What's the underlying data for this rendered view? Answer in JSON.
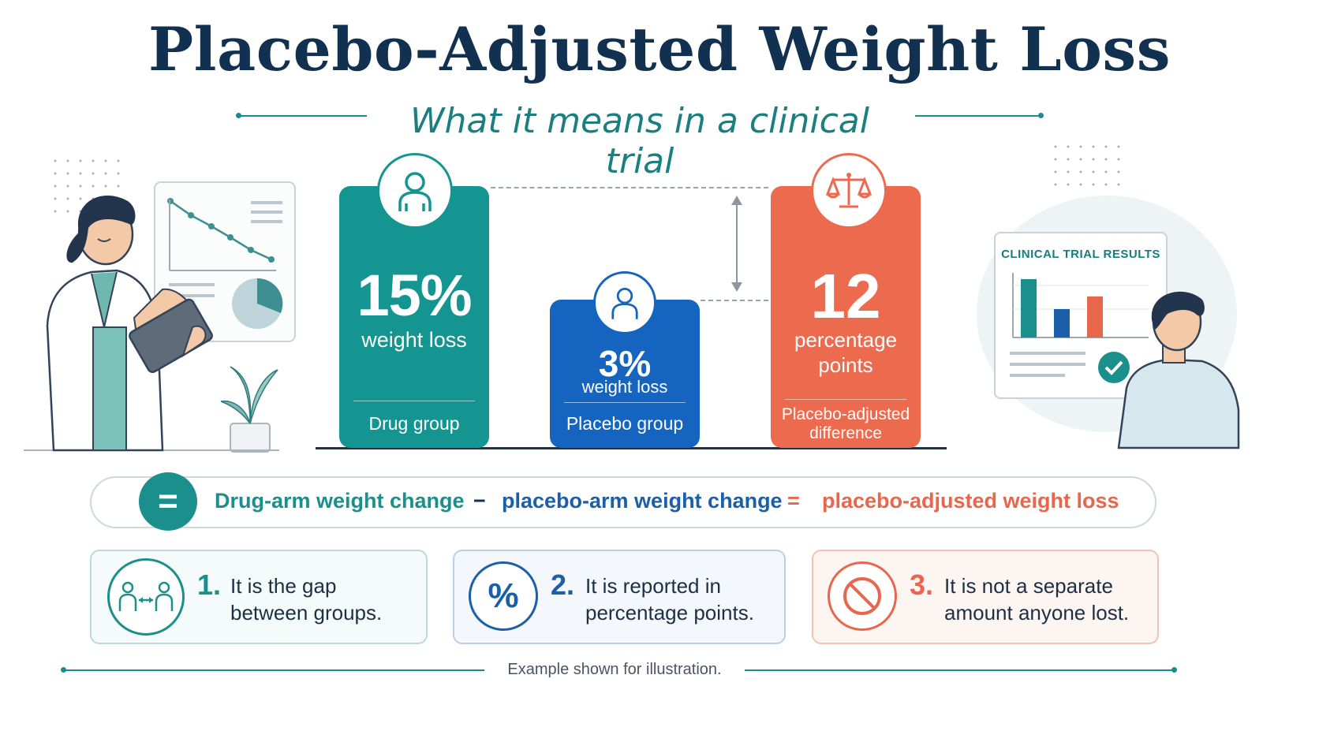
{
  "title": "Placebo-Adjusted Weight Loss",
  "subtitle": "What it means in a clinical trial",
  "bars": {
    "drug": {
      "value": "15%",
      "caption": "weight loss",
      "group": "Drug group",
      "color": "#149591",
      "icon": "person-icon"
    },
    "placebo": {
      "value": "3%",
      "caption": "weight loss",
      "group": "Placebo group",
      "color": "#1565c0",
      "icon": "person-icon"
    },
    "difference": {
      "value": "12",
      "caption_line1": "percentage",
      "caption_line2": "points",
      "group_line1": "Placebo-adjusted",
      "group_line2": "difference",
      "color": "#ec6a4e",
      "icon": "scale-icon"
    }
  },
  "chart_data": {
    "type": "bar",
    "categories": [
      "Drug group",
      "Placebo group",
      "Placebo-adjusted difference"
    ],
    "values": [
      15,
      3,
      12
    ],
    "units": [
      "% weight loss",
      "% weight loss",
      "percentage points"
    ]
  },
  "formula": {
    "badge": "=",
    "term1": "Drug-arm weight change",
    "op1": "−",
    "term2": "placebo-arm weight change",
    "op2": "=",
    "result": "placebo-adjusted weight loss"
  },
  "cards": [
    {
      "number": "1.",
      "line1": "It is the gap",
      "line2": "between groups.",
      "icon": "people-gap-icon",
      "color": "#1a8f8c"
    },
    {
      "number": "2.",
      "line1": "It is reported in",
      "line2": "percentage points.",
      "icon": "percent-icon",
      "color": "#1b5fa8"
    },
    {
      "number": "3.",
      "line1": "It is not a separate",
      "line2": "amount anyone lost.",
      "icon": "prohibited-icon",
      "color": "#e8674c"
    }
  ],
  "board": {
    "title": "CLINICAL TRIAL RESULTS"
  },
  "footnote": "Example shown for illustration."
}
